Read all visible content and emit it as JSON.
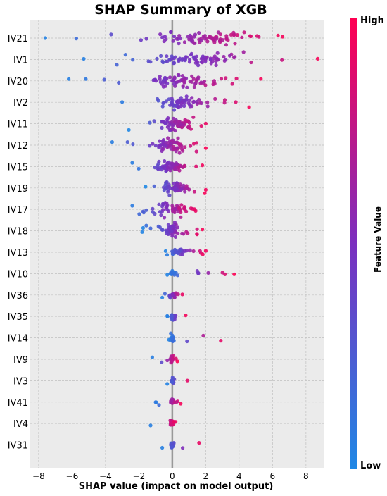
{
  "chart_data": {
    "type": "scatter",
    "title": "SHAP Summary of XGB",
    "xlabel": "SHAP value (impact on model output)",
    "ylabel": "",
    "xlim": [
      -8.5,
      9.1
    ],
    "xticks": [
      -8,
      -6,
      -4,
      -2,
      0,
      2,
      4,
      6,
      8
    ],
    "grid": true,
    "features": [
      {
        "name": "IV21",
        "min": -7.6,
        "max": 6.6,
        "center": 1.8,
        "spread": 2.6,
        "count": 80
      },
      {
        "name": "IV1",
        "min": -5.3,
        "max": 8.7,
        "center": 1.2,
        "spread": 2.6,
        "count": 78
      },
      {
        "name": "IV20",
        "min": -6.2,
        "max": 5.3,
        "center": 0.6,
        "spread": 2.0,
        "count": 72
      },
      {
        "name": "IV2",
        "min": -3.0,
        "max": 4.6,
        "center": 0.2,
        "spread": 1.4,
        "count": 64
      },
      {
        "name": "IV11",
        "min": -2.6,
        "max": 2.0,
        "center": 0.3,
        "spread": 0.9,
        "count": 64
      },
      {
        "name": "IV12",
        "min": -3.6,
        "max": 2.0,
        "center": 0.0,
        "spread": 0.9,
        "count": 64
      },
      {
        "name": "IV15",
        "min": -2.4,
        "max": 1.8,
        "center": 0.0,
        "spread": 0.8,
        "count": 64
      },
      {
        "name": "IV19",
        "min": -1.6,
        "max": 2.0,
        "center": 0.2,
        "spread": 0.8,
        "count": 62
      },
      {
        "name": "IV17",
        "min": -2.4,
        "max": 1.4,
        "center": 0.0,
        "spread": 0.7,
        "count": 58
      },
      {
        "name": "IV18",
        "min": -1.8,
        "max": 1.8,
        "center": 0.0,
        "spread": 0.6,
        "count": 56
      },
      {
        "name": "IV13",
        "min": -0.4,
        "max": 2.0,
        "center": 0.3,
        "spread": 0.5,
        "count": 34
      },
      {
        "name": "IV10",
        "min": -0.3,
        "max": 3.7,
        "center": 0.0,
        "spread": 0.2,
        "count": 22
      },
      {
        "name": "IV36",
        "min": -0.6,
        "max": 0.6,
        "center": 0.0,
        "spread": 0.2,
        "count": 24
      },
      {
        "name": "IV35",
        "min": -0.3,
        "max": 0.8,
        "center": 0.0,
        "spread": 0.2,
        "count": 22
      },
      {
        "name": "IV14",
        "min": -0.2,
        "max": 2.9,
        "center": 0.0,
        "spread": 0.1,
        "count": 18
      },
      {
        "name": "IV9",
        "min": -1.2,
        "max": 0.3,
        "center": 0.0,
        "spread": 0.1,
        "count": 20
      },
      {
        "name": "IV3",
        "min": -0.3,
        "max": 0.9,
        "center": 0.0,
        "spread": 0.1,
        "count": 18
      },
      {
        "name": "IV41",
        "min": -1.0,
        "max": 0.5,
        "center": 0.0,
        "spread": 0.1,
        "count": 20
      },
      {
        "name": "IV4",
        "min": -1.3,
        "max": 0.2,
        "center": 0.0,
        "spread": 0.1,
        "count": 18
      },
      {
        "name": "IV31",
        "min": -0.6,
        "max": 1.6,
        "center": 0.0,
        "spread": 0.1,
        "count": 18
      }
    ],
    "colorbar": {
      "label": "Feature Value",
      "high_label": "High",
      "low_label": "Low",
      "low_color": "#1e88e5",
      "mid_color": "#7b2fbf",
      "high_color": "#ff0052"
    },
    "colors": {
      "plot_background": "#ebebeb",
      "grid": "#c0c0c0",
      "zero_line": "#999999"
    }
  }
}
